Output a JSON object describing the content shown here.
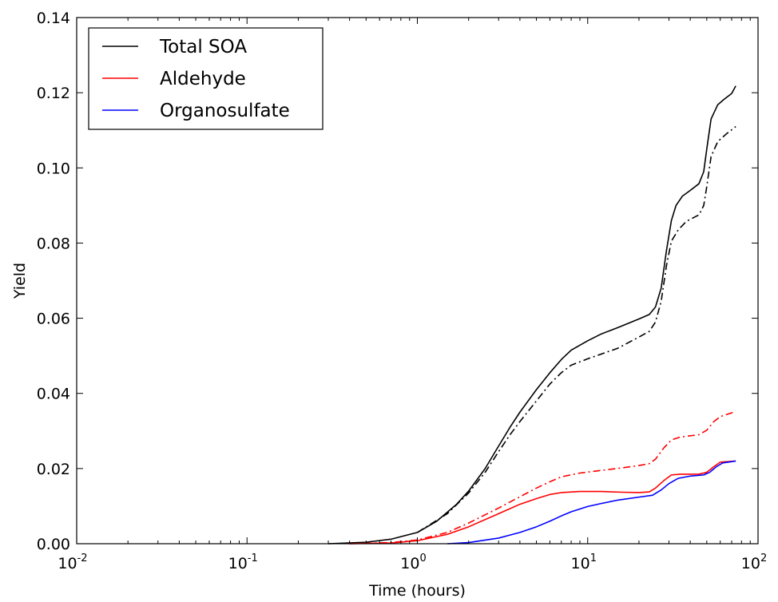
{
  "chart_data": {
    "type": "line",
    "title": "",
    "xlabel": "Time (hours)",
    "ylabel": "Yield",
    "xscale": "log",
    "xlim": [
      0.01,
      100
    ],
    "ylim": [
      0,
      0.14
    ],
    "x_ticks": [
      {
        "value": 0.01,
        "base": "10",
        "exp": "-2"
      },
      {
        "value": 0.1,
        "base": "10",
        "exp": "-1"
      },
      {
        "value": 1,
        "base": "10",
        "exp": "0"
      },
      {
        "value": 10,
        "base": "10",
        "exp": "1"
      },
      {
        "value": 100,
        "base": "10",
        "exp": "2"
      }
    ],
    "y_ticks": [
      {
        "value": 0.0,
        "label": "0.00"
      },
      {
        "value": 0.02,
        "label": "0.02"
      },
      {
        "value": 0.04,
        "label": "0.04"
      },
      {
        "value": 0.06,
        "label": "0.06"
      },
      {
        "value": 0.08,
        "label": "0.08"
      },
      {
        "value": 0.1,
        "label": "0.10"
      },
      {
        "value": 0.12,
        "label": "0.12"
      },
      {
        "value": 0.14,
        "label": "0.14"
      }
    ],
    "grid": false,
    "legend_position": "top-left",
    "series": [
      {
        "name": "Total SOA",
        "color": "#000000",
        "style": "solid",
        "in_legend": true,
        "points": [
          [
            0.3,
            0
          ],
          [
            0.5,
            0.0004
          ],
          [
            0.7,
            0.0012
          ],
          [
            1.0,
            0.003
          ],
          [
            1.3,
            0.006
          ],
          [
            1.7,
            0.0105
          ],
          [
            2.0,
            0.014
          ],
          [
            2.5,
            0.02
          ],
          [
            3.0,
            0.026
          ],
          [
            3.5,
            0.031
          ],
          [
            4.0,
            0.035
          ],
          [
            5.0,
            0.041
          ],
          [
            6.0,
            0.0455
          ],
          [
            7.0,
            0.049
          ],
          [
            8.0,
            0.0515
          ],
          [
            10,
            0.054
          ],
          [
            12,
            0.0558
          ],
          [
            15,
            0.0575
          ],
          [
            20,
            0.0598
          ],
          [
            23,
            0.061
          ],
          [
            25,
            0.063
          ],
          [
            27,
            0.068
          ],
          [
            29,
            0.078
          ],
          [
            31,
            0.086
          ],
          [
            33,
            0.09
          ],
          [
            36,
            0.0925
          ],
          [
            40,
            0.094
          ],
          [
            45,
            0.0958
          ],
          [
            48,
            0.099
          ],
          [
            50,
            0.105
          ],
          [
            53,
            0.113
          ],
          [
            58,
            0.1168
          ],
          [
            63,
            0.1182
          ],
          [
            70,
            0.1198
          ],
          [
            74,
            0.1218
          ]
        ]
      },
      {
        "name": "",
        "color": "#000000",
        "style": "dashdot",
        "in_legend": false,
        "points": [
          [
            1.0,
            0.003
          ],
          [
            1.5,
            0.008
          ],
          [
            2.0,
            0.0135
          ],
          [
            2.5,
            0.019
          ],
          [
            3.0,
            0.0245
          ],
          [
            3.5,
            0.029
          ],
          [
            4.0,
            0.0325
          ],
          [
            5.0,
            0.038
          ],
          [
            6.0,
            0.0425
          ],
          [
            7.0,
            0.0455
          ],
          [
            8.0,
            0.0475
          ],
          [
            10,
            0.0492
          ],
          [
            15,
            0.052
          ],
          [
            20,
            0.055
          ],
          [
            23,
            0.0565
          ],
          [
            25,
            0.059
          ],
          [
            27,
            0.0645
          ],
          [
            29,
            0.074
          ],
          [
            31,
            0.0805
          ],
          [
            34,
            0.0835
          ],
          [
            38,
            0.0858
          ],
          [
            45,
            0.0875
          ],
          [
            48,
            0.09
          ],
          [
            50,
            0.095
          ],
          [
            53,
            0.103
          ],
          [
            58,
            0.107
          ],
          [
            65,
            0.109
          ],
          [
            74,
            0.111
          ]
        ]
      },
      {
        "name": "Aldehyde",
        "color": "#ff0000",
        "style": "solid",
        "in_legend": true,
        "points": [
          [
            0.4,
            0
          ],
          [
            0.7,
            0.0002
          ],
          [
            1.0,
            0.0008
          ],
          [
            1.5,
            0.0025
          ],
          [
            2.0,
            0.0045
          ],
          [
            3.0,
            0.008
          ],
          [
            4.0,
            0.0105
          ],
          [
            5.0,
            0.012
          ],
          [
            6.0,
            0.0131
          ],
          [
            7.0,
            0.0136
          ],
          [
            9.0,
            0.0139
          ],
          [
            12,
            0.0139
          ],
          [
            16,
            0.0137
          ],
          [
            20,
            0.0136
          ],
          [
            23,
            0.0138
          ],
          [
            25,
            0.0148
          ],
          [
            28,
            0.0168
          ],
          [
            31,
            0.0183
          ],
          [
            35,
            0.0185
          ],
          [
            45,
            0.0185
          ],
          [
            50,
            0.019
          ],
          [
            55,
            0.0205
          ],
          [
            60,
            0.0217
          ],
          [
            74,
            0.022
          ]
        ]
      },
      {
        "name": "",
        "color": "#ff0000",
        "style": "dashdot",
        "in_legend": false,
        "points": [
          [
            0.4,
            0
          ],
          [
            0.7,
            0.0003
          ],
          [
            1.0,
            0.001
          ],
          [
            1.5,
            0.003
          ],
          [
            2.0,
            0.0055
          ],
          [
            3.0,
            0.0095
          ],
          [
            4.0,
            0.0125
          ],
          [
            5.0,
            0.0148
          ],
          [
            6.0,
            0.0165
          ],
          [
            7.0,
            0.0178
          ],
          [
            9.0,
            0.0188
          ],
          [
            12,
            0.0195
          ],
          [
            16,
            0.0202
          ],
          [
            20,
            0.0208
          ],
          [
            23,
            0.0213
          ],
          [
            25,
            0.0225
          ],
          [
            28,
            0.0255
          ],
          [
            31,
            0.0276
          ],
          [
            35,
            0.0284
          ],
          [
            45,
            0.029
          ],
          [
            50,
            0.0302
          ],
          [
            55,
            0.0325
          ],
          [
            60,
            0.0338
          ],
          [
            74,
            0.0352
          ]
        ]
      },
      {
        "name": "Organosulfate",
        "color": "#0000ff",
        "style": "solid",
        "in_legend": true,
        "points": [
          [
            1.5,
            0
          ],
          [
            2.0,
            0.0003
          ],
          [
            3.0,
            0.0015
          ],
          [
            4.0,
            0.003
          ],
          [
            5.0,
            0.0045
          ],
          [
            6.0,
            0.006
          ],
          [
            7.0,
            0.0074
          ],
          [
            8.0,
            0.0085
          ],
          [
            10,
            0.0099
          ],
          [
            12,
            0.0107
          ],
          [
            15,
            0.0116
          ],
          [
            20,
            0.0124
          ],
          [
            24,
            0.0129
          ],
          [
            27,
            0.0143
          ],
          [
            30,
            0.016
          ],
          [
            34,
            0.0174
          ],
          [
            40,
            0.018
          ],
          [
            48,
            0.0183
          ],
          [
            52,
            0.019
          ],
          [
            57,
            0.0205
          ],
          [
            62,
            0.0215
          ],
          [
            74,
            0.022
          ]
        ]
      }
    ]
  }
}
